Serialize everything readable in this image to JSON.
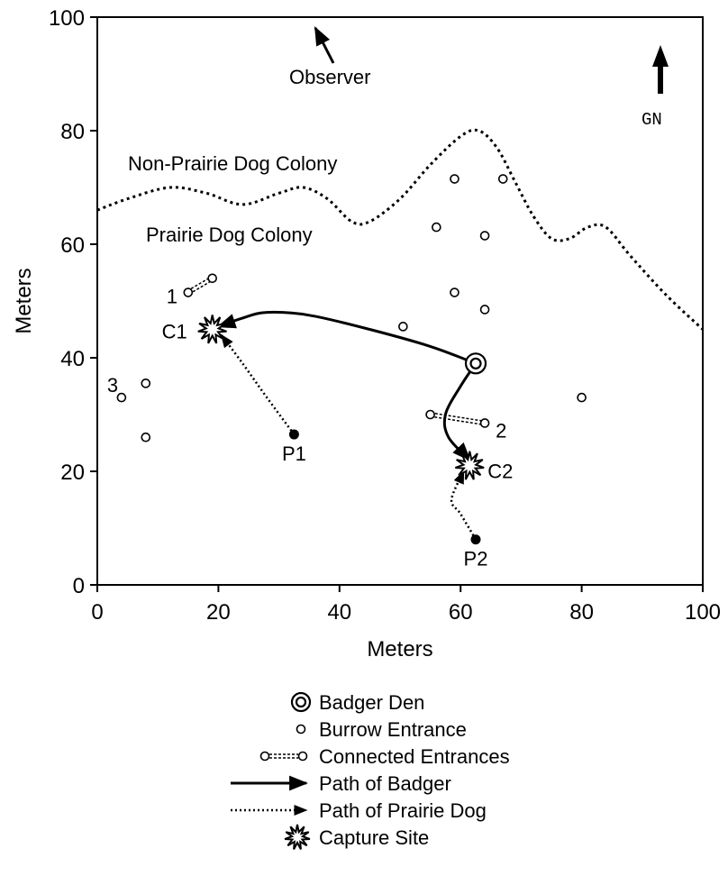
{
  "chart_data": {
    "type": "scatter",
    "xlabel": "Meters",
    "ylabel": "Meters",
    "xlim": [
      0,
      100
    ],
    "ylim": [
      0,
      100
    ],
    "xticks": [
      0,
      20,
      40,
      60,
      80,
      100
    ],
    "yticks": [
      0,
      20,
      40,
      60,
      80,
      100
    ],
    "grid": false,
    "legend_position": "bottom",
    "region_labels": {
      "outside": "Non-Prairie Dog Colony",
      "inside": "Prairie Dog Colony"
    },
    "colony_boundary": [
      [
        0,
        66
      ],
      [
        5,
        68
      ],
      [
        12,
        70
      ],
      [
        18,
        69
      ],
      [
        24,
        67
      ],
      [
        30,
        69
      ],
      [
        34,
        70
      ],
      [
        38,
        68
      ],
      [
        42,
        64
      ],
      [
        45,
        64
      ],
      [
        50,
        68
      ],
      [
        55,
        74
      ],
      [
        60,
        79
      ],
      [
        63,
        80
      ],
      [
        66,
        77
      ],
      [
        69,
        71
      ],
      [
        72,
        65
      ],
      [
        75,
        61
      ],
      [
        78,
        61
      ],
      [
        81,
        63
      ],
      [
        84,
        63
      ],
      [
        88,
        58
      ],
      [
        94,
        51
      ],
      [
        100,
        45
      ]
    ],
    "burrow_entrances": [
      [
        59,
        71.5
      ],
      [
        67,
        71.5
      ],
      [
        56,
        63
      ],
      [
        64,
        61.5
      ],
      [
        59,
        51.5
      ],
      [
        64,
        48.5
      ],
      [
        50.5,
        45.5
      ],
      [
        80,
        33
      ],
      [
        19,
        54
      ],
      [
        15,
        51.5
      ],
      [
        8,
        35.5
      ],
      [
        4,
        33
      ],
      [
        8,
        26
      ],
      [
        55,
        30
      ],
      [
        64,
        28.5
      ]
    ],
    "connected_entrances": [
      {
        "label": "1",
        "from": [
          15,
          51.5
        ],
        "to": [
          19,
          54
        ]
      },
      {
        "label": "2",
        "from": [
          55,
          30
        ],
        "to": [
          64,
          28.5
        ]
      },
      {
        "label": "3",
        "from": [
          4,
          33
        ],
        "to": [
          4,
          33
        ]
      }
    ],
    "badger_den": {
      "x": 62.5,
      "y": 39
    },
    "capture_sites": [
      {
        "label": "C1",
        "x": 19,
        "y": 45
      },
      {
        "label": "C2",
        "x": 61.5,
        "y": 21
      }
    ],
    "prairie_dog_positions": [
      {
        "label": "P1",
        "x": 32.5,
        "y": 26.5
      },
      {
        "label": "P2",
        "x": 62.5,
        "y": 8
      }
    ],
    "badger_paths": [
      [
        [
          62.5,
          39
        ],
        [
          55,
          42
        ],
        [
          45,
          45
        ],
        [
          35,
          47.5
        ],
        [
          28,
          48
        ],
        [
          24,
          47
        ],
        [
          20,
          45.5
        ]
      ],
      [
        [
          62.5,
          39
        ],
        [
          60,
          35
        ],
        [
          57.5,
          30
        ],
        [
          58,
          26
        ],
        [
          61.5,
          22
        ]
      ]
    ],
    "prairie_dog_paths": [
      [
        [
          32.5,
          26.5
        ],
        [
          28,
          33
        ],
        [
          24,
          39
        ],
        [
          20.5,
          44
        ]
      ],
      [
        [
          62.5,
          8
        ],
        [
          60,
          12.5
        ],
        [
          58.5,
          15
        ],
        [
          60.5,
          20
        ]
      ]
    ],
    "annotations": {
      "observer": "Observer",
      "grid_north": "GN"
    },
    "legend": [
      {
        "symbol": "badger-den",
        "label": "Badger Den"
      },
      {
        "symbol": "burrow-entrance",
        "label": "Burrow Entrance"
      },
      {
        "symbol": "connected-entrances",
        "label": "Connected Entrances"
      },
      {
        "symbol": "badger-path",
        "label": "Path of Badger"
      },
      {
        "symbol": "prairie-dog-path",
        "label": "Path of Prairie Dog"
      },
      {
        "symbol": "capture-site",
        "label": "Capture Site"
      }
    ]
  }
}
